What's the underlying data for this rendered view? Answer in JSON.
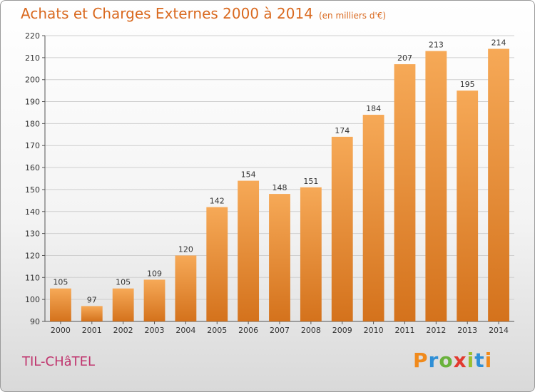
{
  "title": "Achats et Charges Externes 2000 à 2014",
  "subtitle": "(en milliers d'€)",
  "location": "TIL-CHâTEL",
  "logo": {
    "letters": [
      "P",
      "r",
      "o",
      "x",
      "i",
      "t",
      "i"
    ]
  },
  "colors": {
    "bar_light": "#f6a957",
    "bar_dark": "#d4721c",
    "title": "#d9691f",
    "location": "#c0356e"
  },
  "chart_data": {
    "type": "bar",
    "categories": [
      "2000",
      "2001",
      "2002",
      "2003",
      "2004",
      "2005",
      "2006",
      "2007",
      "2008",
      "2009",
      "2010",
      "2011",
      "2012",
      "2013",
      "2014"
    ],
    "values": [
      105,
      97,
      105,
      109,
      120,
      142,
      154,
      148,
      151,
      174,
      184,
      207,
      213,
      195,
      214
    ],
    "ylim": [
      90,
      220
    ],
    "yticks": [
      90,
      100,
      110,
      120,
      130,
      140,
      150,
      160,
      170,
      180,
      190,
      200,
      210,
      220
    ],
    "grid": true,
    "title": "Achats et Charges Externes 2000 à 2014",
    "xlabel": "",
    "ylabel": ""
  }
}
